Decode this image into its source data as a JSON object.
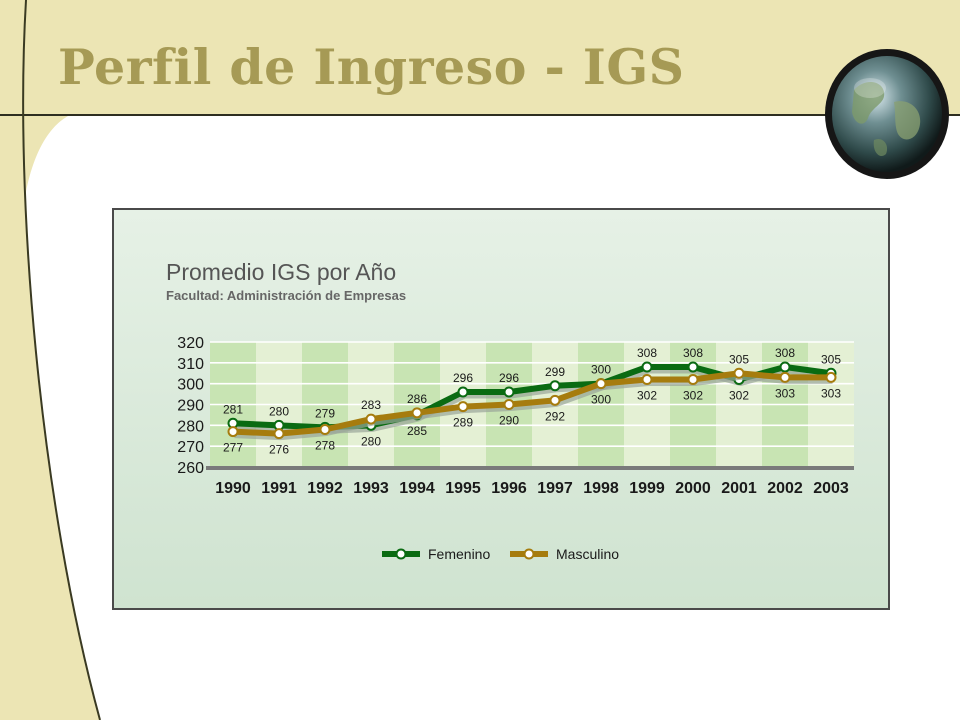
{
  "slide": {
    "title": "Perfil de Ingreso - IGS",
    "colors": {
      "title": "#a69a55",
      "banner": "#ece5b4",
      "accent": "#3a3a22"
    }
  },
  "globe_icon": "globe-icon",
  "chart_data": {
    "type": "line",
    "title": "Promedio IGS por Año",
    "subtitle": "Facultad: Administración de Empresas",
    "xlabel": "",
    "ylabel": "",
    "categories": [
      "1990",
      "1991",
      "1992",
      "1993",
      "1994",
      "1995",
      "1996",
      "1997",
      "1998",
      "1999",
      "2000",
      "2001",
      "2002",
      "2003"
    ],
    "ylim": [
      260,
      320
    ],
    "yticks": [
      320,
      310,
      300,
      290,
      280,
      270,
      260
    ],
    "grid": true,
    "legend_position": "bottom",
    "series": [
      {
        "name": "Femenino",
        "color": "#0a6b12",
        "values": [
          281,
          280,
          279,
          280,
          285,
          296,
          296,
          299,
          300,
          308,
          308,
          302,
          308,
          305
        ]
      },
      {
        "name": "Masculino",
        "color": "#a67c0e",
        "values": [
          277,
          276,
          278,
          283,
          286,
          289,
          290,
          292,
          300,
          302,
          302,
          305,
          303,
          303
        ]
      }
    ]
  }
}
